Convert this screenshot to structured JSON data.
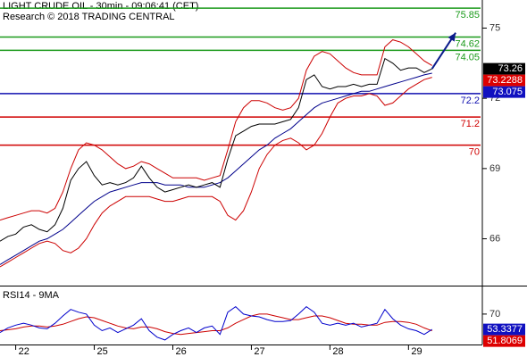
{
  "chart_data": [
    {
      "type": "line",
      "title": "LIGHT CRUDE OIL - 30min - 09:06:41 (CET)",
      "subtitle": "Research © 2018 TRADING CENTRAL",
      "x": [
        0,
        1,
        2,
        3,
        4,
        5,
        6,
        7,
        8,
        9,
        10,
        11,
        12,
        13,
        14,
        15,
        16,
        17,
        18,
        19,
        20,
        21,
        22,
        23,
        24,
        25,
        26,
        27,
        28,
        29,
        30,
        31,
        32,
        33,
        34,
        35,
        36,
        37,
        38,
        39,
        40,
        41,
        42,
        43,
        44,
        45,
        46,
        47,
        48,
        49,
        50,
        51,
        52,
        53,
        54,
        55
      ],
      "xlim": [
        0,
        61.4
      ],
      "ylim": [
        64.0,
        76.2
      ],
      "yticks": [
        66,
        69,
        72,
        75
      ],
      "series": [
        {
          "color": "#cc0000",
          "values": [
            66.8,
            66.9,
            67.0,
            67.1,
            67.2,
            67.2,
            67.1,
            67.3,
            68.0,
            69.0,
            69.8,
            70.1,
            70.0,
            69.8,
            69.5,
            69.2,
            69.0,
            69.1,
            69.3,
            69.2,
            69.0,
            68.8,
            68.6,
            68.6,
            68.6,
            68.6,
            68.5,
            68.6,
            68.7,
            69.8,
            71.0,
            71.6,
            71.9,
            71.9,
            71.8,
            71.6,
            71.5,
            71.6,
            72.0,
            73.2,
            73.8,
            74.0,
            73.9,
            73.6,
            73.3,
            73.1,
            73.0,
            73.0,
            73.0,
            74.2,
            74.5,
            74.4,
            74.2,
            73.9,
            73.6,
            73.4
          ]
        },
        {
          "color": "#cc0000",
          "values": [
            64.8,
            65.0,
            65.2,
            65.4,
            65.6,
            65.8,
            65.9,
            65.8,
            65.5,
            65.4,
            65.6,
            66.0,
            66.6,
            67.1,
            67.4,
            67.6,
            67.8,
            67.8,
            67.8,
            67.8,
            67.7,
            67.6,
            67.6,
            67.7,
            67.8,
            67.8,
            67.8,
            67.8,
            67.6,
            67.0,
            66.8,
            67.2,
            68.0,
            69.0,
            69.6,
            70.0,
            70.2,
            70.3,
            70.1,
            69.8,
            70.0,
            70.5,
            71.2,
            71.8,
            72.0,
            72.1,
            72.1,
            72.2,
            72.1,
            71.7,
            71.8,
            72.1,
            72.4,
            72.6,
            72.8,
            72.9
          ]
        },
        {
          "color": "#00008b",
          "values": [
            64.9,
            65.1,
            65.3,
            65.5,
            65.7,
            65.9,
            66.0,
            66.2,
            66.4,
            66.7,
            67.0,
            67.3,
            67.6,
            67.8,
            68.0,
            68.1,
            68.2,
            68.3,
            68.4,
            68.4,
            68.4,
            68.3,
            68.3,
            68.3,
            68.2,
            68.2,
            68.2,
            68.3,
            68.4,
            68.6,
            68.9,
            69.2,
            69.5,
            69.8,
            70.0,
            70.3,
            70.5,
            70.7,
            71.0,
            71.3,
            71.6,
            71.8,
            71.9,
            72.0,
            72.1,
            72.2,
            72.3,
            72.3,
            72.4,
            72.5,
            72.6,
            72.7,
            72.8,
            72.9,
            73.0,
            73.075
          ]
        },
        {
          "color": "#000000",
          "values": [
            65.9,
            66.1,
            66.2,
            66.5,
            66.6,
            66.4,
            66.3,
            66.6,
            67.3,
            68.5,
            69.0,
            69.3,
            68.7,
            68.3,
            68.4,
            68.3,
            68.4,
            68.6,
            69.1,
            68.6,
            68.2,
            68.0,
            68.1,
            68.2,
            68.3,
            68.2,
            68.3,
            68.4,
            68.2,
            69.4,
            70.4,
            70.6,
            70.8,
            70.9,
            70.9,
            70.9,
            71.0,
            71.1,
            71.6,
            72.8,
            73.0,
            72.5,
            72.4,
            72.5,
            72.5,
            72.6,
            72.5,
            72.6,
            72.6,
            73.7,
            73.5,
            73.2,
            73.3,
            73.3,
            73.1,
            73.26
          ]
        }
      ],
      "levels": [
        {
          "value": 75.85,
          "color": "#1a9a1a"
        },
        {
          "value": 74.62,
          "color": "#1a9a1a"
        },
        {
          "value": 74.05,
          "color": "#1a9a1a"
        },
        {
          "value": 72.2,
          "color": "#1010b0"
        },
        {
          "value": 71.2,
          "color": "#d00000"
        },
        {
          "value": 70,
          "color": "#d00000"
        }
      ],
      "markers": [
        {
          "value": 73.26,
          "color": "#000000"
        },
        {
          "value": 73.2288,
          "color": "#dd0000"
        },
        {
          "value": 73.075,
          "color": "#1010c0"
        }
      ],
      "projection": {
        "x": [
          55,
          58
        ],
        "values": [
          73.26,
          74.8
        ],
        "color": "#0a1a8a"
      }
    },
    {
      "type": "line",
      "title": "RSI14 - 9MA",
      "x": [
        0,
        1,
        2,
        3,
        4,
        5,
        6,
        7,
        8,
        9,
        10,
        11,
        12,
        13,
        14,
        15,
        16,
        17,
        18,
        19,
        20,
        21,
        22,
        23,
        24,
        25,
        26,
        27,
        28,
        29,
        30,
        31,
        32,
        33,
        34,
        35,
        36,
        37,
        38,
        39,
        40,
        41,
        42,
        43,
        44,
        45,
        46,
        47,
        48,
        49,
        50,
        51,
        52,
        53,
        54,
        55
      ],
      "xlim": [
        0,
        61.4
      ],
      "ylim": [
        38,
        96
      ],
      "yticks": [
        70
      ],
      "xticks": [
        {
          "value": 2,
          "label": "22"
        },
        {
          "value": 12,
          "label": "25"
        },
        {
          "value": 22,
          "label": "26"
        },
        {
          "value": 32,
          "label": "27"
        },
        {
          "value": 42,
          "label": "28"
        },
        {
          "value": 52,
          "label": "29"
        }
      ],
      "series": [
        {
          "color": "#cc0000",
          "values": [
            52,
            53,
            54,
            56,
            57,
            57,
            56,
            57,
            59,
            62,
            65,
            67,
            66,
            63,
            60,
            57,
            55,
            54,
            56,
            56,
            54,
            51,
            49,
            48,
            49,
            50,
            51,
            52,
            52,
            55,
            60,
            64,
            68,
            70,
            70,
            68,
            66,
            64,
            64,
            66,
            68,
            68,
            66,
            63,
            60,
            59,
            59,
            58,
            58,
            61,
            62,
            62,
            61,
            59,
            55,
            51.8069
          ]
        },
        {
          "color": "#0000cc",
          "values": [
            50,
            55,
            58,
            60,
            58,
            55,
            54,
            60,
            68,
            75,
            72,
            70,
            58,
            52,
            55,
            50,
            54,
            58,
            65,
            52,
            45,
            42,
            48,
            52,
            55,
            50,
            55,
            57,
            48,
            72,
            78,
            70,
            68,
            67,
            64,
            62,
            62,
            63,
            70,
            78,
            72,
            60,
            58,
            60,
            58,
            60,
            56,
            58,
            60,
            75,
            65,
            58,
            54,
            52,
            48,
            53.3377
          ]
        }
      ],
      "markers": [
        {
          "value": 53.3377,
          "color": "#1010c0"
        },
        {
          "value": 51.8069,
          "color": "#dd0000"
        }
      ]
    }
  ]
}
